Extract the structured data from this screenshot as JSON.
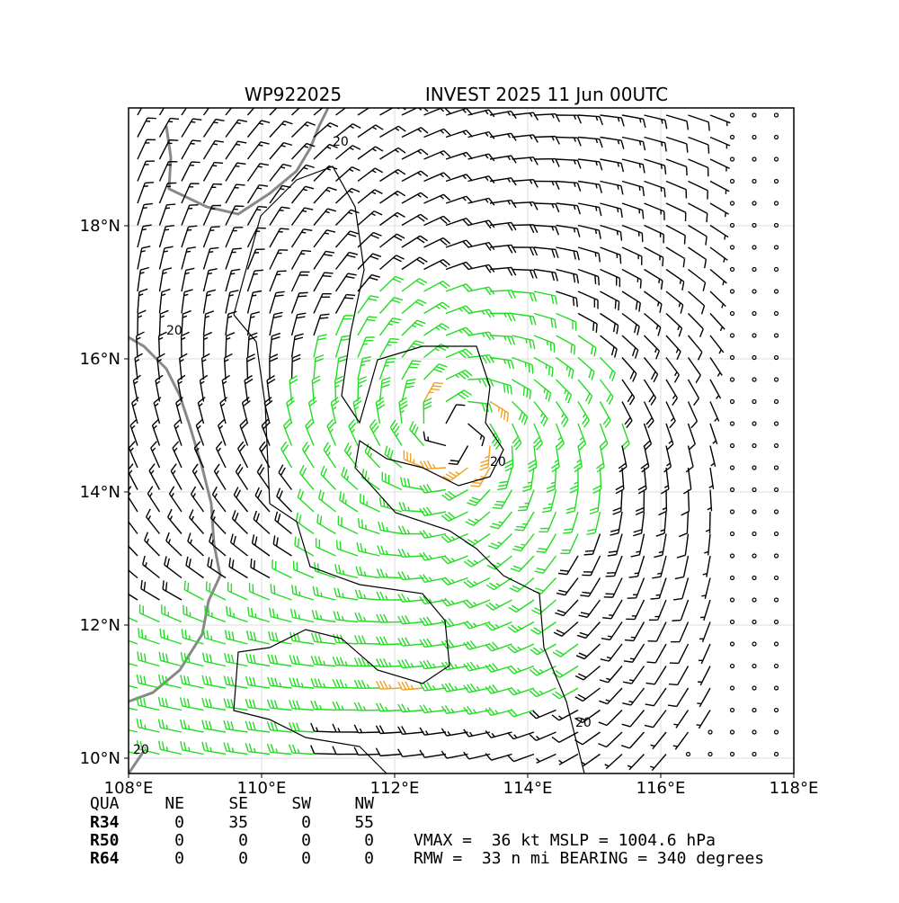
{
  "map": {
    "title_left": "WP922025",
    "title_right": "INVEST 2025 11 Jun 00UTC",
    "lon_range": [
      108,
      118
    ],
    "lat_range": [
      9.77,
      19.77
    ],
    "xticks": [
      {
        "value": 108,
        "label": "108°E"
      },
      {
        "value": 110,
        "label": "110°E"
      },
      {
        "value": 112,
        "label": "112°E"
      },
      {
        "value": 114,
        "label": "114°E"
      },
      {
        "value": 116,
        "label": "116°E"
      },
      {
        "value": 118,
        "label": "118°E"
      }
    ],
    "yticks": [
      {
        "value": 10,
        "label": "10°N"
      },
      {
        "value": 12,
        "label": "12°N"
      },
      {
        "value": 14,
        "label": "14°N"
      },
      {
        "value": 16,
        "label": "16°N"
      },
      {
        "value": 18,
        "label": "18°N"
      }
    ],
    "contour_labels": [
      "20",
      "20",
      "20",
      "20",
      "20"
    ]
  },
  "table": {
    "header": [
      "QUA",
      "NE",
      "SE",
      "SW",
      "NW"
    ],
    "rows": [
      [
        "R34",
        0,
        35,
        0,
        55
      ],
      [
        "R50",
        0,
        0,
        0,
        0
      ],
      [
        "R64",
        0,
        0,
        0,
        0
      ]
    ]
  },
  "stats": [
    "VMAX =  36 kt MSLP = 1004.6 hPa",
    "RMW =  33 n mi BEARING = 340 degrees"
  ]
}
